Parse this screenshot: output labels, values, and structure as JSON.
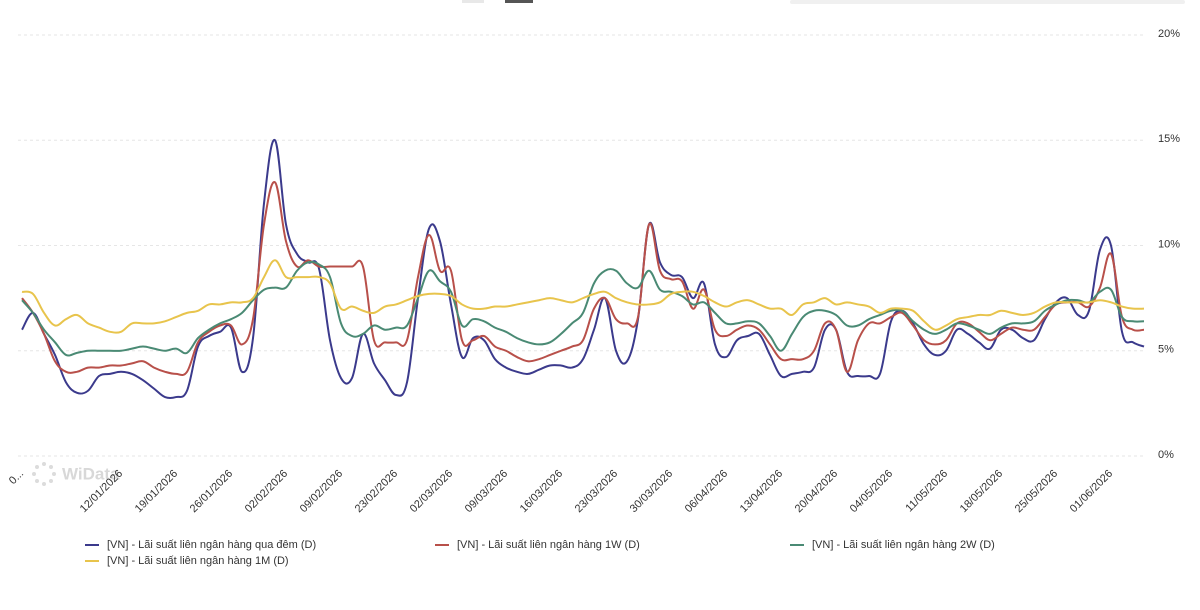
{
  "chart_data": {
    "type": "line",
    "watermark": "WiData",
    "categories": [
      "0...",
      null,
      null,
      null,
      null,
      null,
      null,
      null,
      null,
      "12/01/2026",
      null,
      null,
      null,
      null,
      "19/01/2026",
      null,
      null,
      null,
      null,
      "26/01/2026",
      null,
      null,
      null,
      null,
      "02/02/2026",
      null,
      null,
      null,
      null,
      "09/02/2026",
      null,
      null,
      null,
      null,
      "23/02/2026",
      null,
      null,
      null,
      null,
      "02/03/2026",
      null,
      null,
      null,
      null,
      "09/03/2026",
      null,
      null,
      null,
      null,
      "16/03/2026",
      null,
      null,
      null,
      null,
      "23/03/2026",
      null,
      null,
      null,
      null,
      "30/03/2026",
      null,
      null,
      null,
      null,
      "06/04/2026",
      null,
      null,
      null,
      null,
      "13/04/2026",
      null,
      null,
      null,
      null,
      "20/04/2026",
      null,
      null,
      null,
      null,
      "04/05/2026",
      null,
      null,
      null,
      null,
      "11/05/2026",
      null,
      null,
      null,
      null,
      "18/05/2026",
      null,
      null,
      null,
      null,
      "25/05/2026",
      null,
      null,
      null,
      null,
      "01/06/2026",
      null,
      null,
      null
    ],
    "series": [
      {
        "name": "[VN] - Lãi suất liên ngân hàng qua đêm (D)",
        "color": "#3b3a8c",
        "values": [
          6.0,
          6.8,
          5.8,
          4.8,
          3.5,
          3.0,
          3.1,
          3.8,
          3.9,
          4.0,
          3.9,
          3.6,
          3.2,
          2.8,
          2.8,
          3.1,
          5.2,
          5.7,
          5.9,
          6.1,
          4.0,
          5.6,
          12.0,
          15.0,
          11.0,
          9.6,
          9.2,
          8.9,
          5.5,
          3.7,
          3.7,
          5.8,
          4.4,
          3.6,
          2.9,
          3.5,
          7.5,
          10.8,
          10.2,
          7.2,
          4.7,
          5.6,
          5.5,
          4.6,
          4.2,
          4.0,
          3.9,
          4.1,
          4.3,
          4.3,
          4.2,
          4.6,
          6.0,
          7.5,
          5.0,
          4.5,
          6.5,
          11.0,
          9.2,
          8.6,
          8.5,
          7.5,
          8.2,
          5.3,
          4.7,
          5.5,
          5.7,
          5.8,
          4.8,
          3.8,
          3.9,
          4.0,
          4.2,
          6.0,
          6.0,
          4.0,
          3.8,
          3.8,
          3.9,
          6.4,
          6.9,
          6.3,
          5.3,
          4.8,
          5.0,
          6.0,
          5.8,
          5.4,
          5.1,
          6.0,
          6.0,
          5.6,
          5.5,
          6.5,
          7.3,
          7.5,
          6.7,
          6.9,
          9.8,
          10.0,
          5.9,
          5.4,
          5.2
        ]
      },
      {
        "name": "[VN] - Lãi suất liên ngân hàng 1W (D)",
        "color": "#b8504a",
        "values": [
          7.5,
          6.8,
          5.8,
          4.5,
          4.0,
          4.0,
          4.2,
          4.2,
          4.3,
          4.3,
          4.4,
          4.5,
          4.2,
          4.0,
          3.9,
          4.0,
          5.4,
          5.9,
          6.2,
          6.2,
          5.3,
          6.5,
          11.0,
          13.0,
          10.2,
          9.0,
          9.3,
          9.0,
          9.0,
          9.0,
          9.0,
          9.0,
          5.5,
          5.4,
          5.4,
          5.5,
          8.5,
          10.5,
          8.8,
          8.8,
          5.5,
          5.5,
          5.7,
          5.2,
          5.0,
          4.7,
          4.5,
          4.6,
          4.8,
          5.0,
          5.2,
          5.5,
          7.0,
          7.5,
          6.5,
          6.3,
          6.6,
          11.0,
          8.8,
          8.4,
          8.3,
          7.0,
          7.9,
          6.0,
          5.7,
          6.0,
          6.2,
          6.0,
          5.3,
          4.6,
          4.6,
          4.6,
          5.0,
          6.3,
          6.0,
          4.0,
          5.5,
          6.3,
          6.3,
          6.6,
          6.8,
          6.2,
          5.5,
          5.3,
          5.5,
          6.3,
          6.3,
          5.9,
          5.5,
          5.8,
          6.1,
          6.0,
          6.0,
          6.6,
          7.2,
          7.3,
          7.3,
          7.1,
          8.0,
          9.6,
          6.6,
          6.0,
          6.0
        ]
      },
      {
        "name": "[VN] - Lãi suất liên ngân hàng 2W (D)",
        "color": "#4a8a74",
        "values": [
          7.4,
          6.8,
          6.0,
          5.4,
          4.8,
          4.9,
          5.0,
          5.0,
          5.0,
          5.0,
          5.1,
          5.2,
          5.1,
          5.0,
          5.1,
          4.9,
          5.6,
          6.0,
          6.3,
          6.5,
          6.8,
          7.4,
          7.9,
          8.0,
          8.0,
          8.8,
          9.2,
          9.1,
          8.5,
          6.3,
          5.7,
          5.8,
          6.2,
          6.0,
          6.1,
          6.2,
          7.5,
          8.8,
          8.3,
          7.8,
          6.2,
          6.5,
          6.4,
          6.1,
          5.9,
          5.6,
          5.4,
          5.3,
          5.4,
          5.8,
          6.3,
          6.8,
          8.2,
          8.8,
          8.8,
          8.2,
          8.0,
          8.8,
          7.9,
          7.8,
          7.6,
          7.2,
          7.3,
          6.8,
          6.3,
          6.3,
          6.4,
          6.3,
          5.7,
          5.0,
          5.8,
          6.6,
          6.9,
          6.9,
          6.7,
          6.2,
          6.2,
          6.5,
          6.7,
          6.9,
          6.9,
          6.4,
          6.0,
          5.8,
          6.0,
          6.3,
          6.2,
          6.0,
          5.8,
          6.1,
          6.3,
          6.3,
          6.4,
          6.9,
          7.2,
          7.4,
          7.4,
          7.3,
          7.8,
          7.9,
          6.6,
          6.4,
          6.4
        ]
      },
      {
        "name": "[VN] - Lãi suất liên ngân hàng 1M (D)",
        "color": "#e8c44c",
        "values": [
          7.8,
          7.7,
          6.8,
          6.2,
          6.5,
          6.7,
          6.3,
          6.1,
          5.9,
          5.9,
          6.3,
          6.3,
          6.3,
          6.4,
          6.6,
          6.8,
          6.9,
          7.2,
          7.2,
          7.3,
          7.3,
          7.5,
          8.5,
          9.3,
          8.5,
          8.5,
          8.5,
          8.5,
          8.2,
          7.0,
          7.1,
          6.9,
          6.8,
          7.1,
          7.2,
          7.4,
          7.6,
          7.7,
          7.7,
          7.6,
          7.2,
          7.0,
          7.0,
          7.1,
          7.1,
          7.2,
          7.3,
          7.4,
          7.5,
          7.4,
          7.3,
          7.5,
          7.7,
          7.8,
          7.5,
          7.3,
          7.2,
          7.2,
          7.3,
          7.7,
          7.8,
          7.8,
          7.6,
          7.3,
          7.1,
          7.3,
          7.4,
          7.2,
          7.0,
          7.0,
          6.7,
          7.2,
          7.3,
          7.5,
          7.2,
          7.3,
          7.2,
          7.1,
          6.8,
          7.0,
          7.0,
          6.9,
          6.4,
          6.0,
          6.2,
          6.5,
          6.6,
          6.7,
          6.7,
          6.9,
          6.8,
          6.7,
          6.8,
          7.1,
          7.3,
          7.3,
          7.3,
          7.3,
          7.4,
          7.3,
          7.1,
          7.0,
          7.0
        ]
      }
    ],
    "ylim": [
      0,
      20
    ],
    "yticks": [
      {
        "value": 0,
        "label": "0%"
      },
      {
        "value": 5,
        "label": "5%"
      },
      {
        "value": 10,
        "label": "10%"
      },
      {
        "value": 15,
        "label": "15%"
      },
      {
        "value": 20,
        "label": "20%"
      }
    ],
    "grid": true
  }
}
